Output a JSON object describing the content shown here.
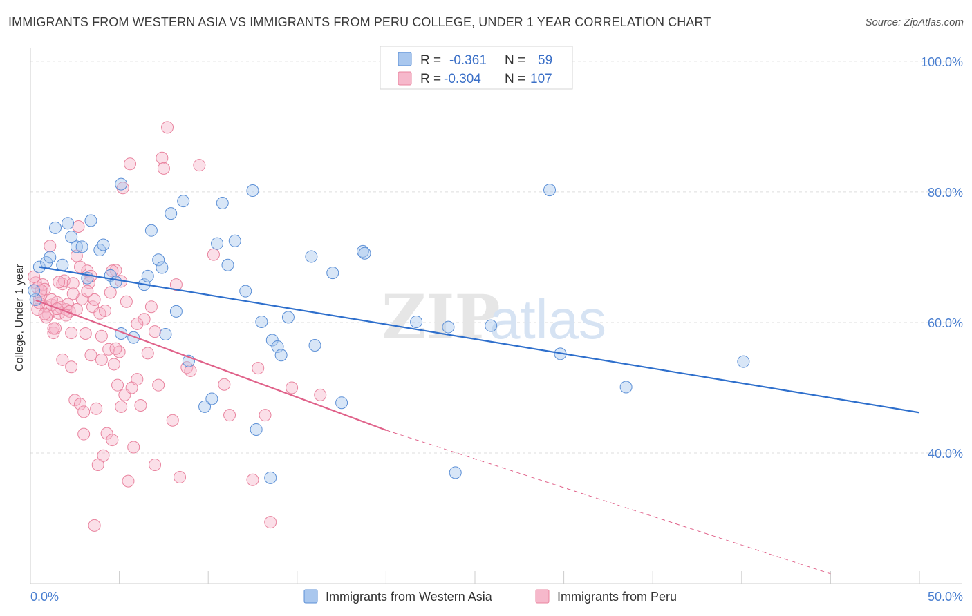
{
  "title": "IMMIGRANTS FROM WESTERN ASIA VS IMMIGRANTS FROM PERU COLLEGE, UNDER 1 YEAR CORRELATION CHART",
  "source": "Source: ZipAtlas.com",
  "watermark": {
    "part1": "ZIP",
    "part2": "atlas"
  },
  "colors": {
    "blue_fill": "#a9c7ee",
    "blue_stroke": "#5b8fd6",
    "blue_line": "#2e6fcc",
    "pink_fill": "#f6b8cb",
    "pink_stroke": "#e9849f",
    "pink_line": "#e0628a",
    "axis_text": "#4a7fd0",
    "grid": "#dddddd"
  },
  "legend_top": [
    {
      "r_label": "R =",
      "r_value": "-0.361",
      "n_label": "N =",
      "n_value": "59"
    },
    {
      "r_label": "R =",
      "r_value": "-0.304",
      "n_label": "N =",
      "n_value": "107"
    }
  ],
  "chart_data": {
    "type": "scatter",
    "title": "IMMIGRANTS FROM WESTERN ASIA VS IMMIGRANTS FROM PERU COLLEGE, UNDER 1 YEAR CORRELATION CHART",
    "xlabel": "",
    "ylabel": "College, Under 1 year",
    "xlim": [
      0,
      50
    ],
    "ylim": [
      20,
      102
    ],
    "x_tick_labels": [
      "0.0%",
      "50.0%"
    ],
    "y_ticks": [
      40,
      60,
      80,
      100
    ],
    "y_tick_labels": [
      "40.0%",
      "60.0%",
      "80.0%",
      "100.0%"
    ],
    "grid": true,
    "legend_position": "top-center",
    "series": [
      {
        "name": "Immigrants from Western Asia",
        "trend": {
          "x0": 0.5,
          "y0": 68.5,
          "x1": 50,
          "y1": 46.2
        },
        "points": [
          [
            0.5,
            68.5
          ],
          [
            0.9,
            69.2
          ],
          [
            1.1,
            70.0
          ],
          [
            1.4,
            74.5
          ],
          [
            1.8,
            68.8
          ],
          [
            2.1,
            75.2
          ],
          [
            2.3,
            73.1
          ],
          [
            2.6,
            71.6
          ],
          [
            2.9,
            71.6
          ],
          [
            3.4,
            75.6
          ],
          [
            3.2,
            66.8
          ],
          [
            3.9,
            71.1
          ],
          [
            4.1,
            71.9
          ],
          [
            4.5,
            67.2
          ],
          [
            4.8,
            66.2
          ],
          [
            5.1,
            81.2
          ],
          [
            5.1,
            58.3
          ],
          [
            5.8,
            57.7
          ],
          [
            6.4,
            65.8
          ],
          [
            6.6,
            67.1
          ],
          [
            6.8,
            74.1
          ],
          [
            7.2,
            69.6
          ],
          [
            7.4,
            68.4
          ],
          [
            7.6,
            58.2
          ],
          [
            7.9,
            76.7
          ],
          [
            8.2,
            61.7
          ],
          [
            8.6,
            78.6
          ],
          [
            8.9,
            54.1
          ],
          [
            9.8,
            47.1
          ],
          [
            10.2,
            48.3
          ],
          [
            10.5,
            72.1
          ],
          [
            10.8,
            78.3
          ],
          [
            11.1,
            68.8
          ],
          [
            11.5,
            72.5
          ],
          [
            12.1,
            64.8
          ],
          [
            12.5,
            80.2
          ],
          [
            12.7,
            43.6
          ],
          [
            13.0,
            60.1
          ],
          [
            13.5,
            36.2
          ],
          [
            13.6,
            57.3
          ],
          [
            13.9,
            56.3
          ],
          [
            14.1,
            55.0
          ],
          [
            14.5,
            60.8
          ],
          [
            15.8,
            70.1
          ],
          [
            16.0,
            56.5
          ],
          [
            17.0,
            67.6
          ],
          [
            17.5,
            47.7
          ],
          [
            18.7,
            70.9
          ],
          [
            18.8,
            70.6
          ],
          [
            21.7,
            60.1
          ],
          [
            23.5,
            59.3
          ],
          [
            23.9,
            37.0
          ],
          [
            25.9,
            59.5
          ],
          [
            29.2,
            80.3
          ],
          [
            29.8,
            55.2
          ],
          [
            33.5,
            50.1
          ],
          [
            40.1,
            54.0
          ],
          [
            0.3,
            63.5
          ],
          [
            0.2,
            64.9
          ]
        ]
      },
      {
        "name": "Immigrants from Peru",
        "trend": {
          "x0": 0.3,
          "y0": 63.4,
          "x1": 20,
          "y1": 43.5
        },
        "trend_dashed": {
          "x0": 20,
          "y0": 43.5,
          "x1": 45,
          "y1": 21.5
        },
        "points": [
          [
            0.3,
            66.1
          ],
          [
            0.4,
            65.3
          ],
          [
            0.5,
            63.6
          ],
          [
            0.6,
            64.2
          ],
          [
            0.7,
            65.8
          ],
          [
            0.8,
            65.1
          ],
          [
            0.9,
            62.4
          ],
          [
            1.0,
            61.2
          ],
          [
            1.1,
            71.7
          ],
          [
            1.2,
            62.7
          ],
          [
            1.3,
            58.4
          ],
          [
            1.4,
            59.1
          ],
          [
            1.5,
            63.1
          ],
          [
            1.6,
            61.4
          ],
          [
            1.7,
            62.3
          ],
          [
            1.8,
            65.9
          ],
          [
            1.9,
            66.4
          ],
          [
            2.0,
            62.0
          ],
          [
            2.1,
            62.8
          ],
          [
            2.2,
            61.7
          ],
          [
            2.3,
            53.2
          ],
          [
            2.4,
            66.0
          ],
          [
            2.5,
            48.1
          ],
          [
            2.6,
            70.2
          ],
          [
            2.7,
            74.7
          ],
          [
            2.8,
            47.5
          ],
          [
            2.9,
            63.6
          ],
          [
            3.0,
            46.3
          ],
          [
            3.1,
            58.3
          ],
          [
            3.2,
            67.9
          ],
          [
            3.3,
            66.1
          ],
          [
            3.4,
            55.0
          ],
          [
            3.5,
            62.4
          ],
          [
            3.6,
            63.5
          ],
          [
            3.7,
            46.8
          ],
          [
            3.8,
            38.2
          ],
          [
            3.9,
            61.4
          ],
          [
            4.0,
            54.3
          ],
          [
            4.1,
            39.6
          ],
          [
            4.2,
            61.8
          ],
          [
            4.3,
            43.0
          ],
          [
            4.4,
            55.9
          ],
          [
            4.5,
            64.6
          ],
          [
            4.6,
            42.0
          ],
          [
            4.7,
            53.6
          ],
          [
            4.8,
            68.0
          ],
          [
            4.9,
            50.4
          ],
          [
            5.0,
            55.5
          ],
          [
            5.1,
            47.1
          ],
          [
            5.2,
            80.6
          ],
          [
            5.3,
            48.9
          ],
          [
            5.4,
            63.2
          ],
          [
            5.5,
            35.7
          ],
          [
            5.6,
            84.3
          ],
          [
            5.7,
            50.0
          ],
          [
            5.8,
            40.9
          ],
          [
            6.0,
            51.3
          ],
          [
            6.2,
            47.3
          ],
          [
            6.4,
            60.5
          ],
          [
            6.6,
            55.3
          ],
          [
            6.8,
            62.4
          ],
          [
            7.0,
            38.2
          ],
          [
            7.2,
            50.4
          ],
          [
            7.4,
            85.2
          ],
          [
            7.5,
            83.6
          ],
          [
            7.7,
            89.9
          ],
          [
            8.0,
            45.0
          ],
          [
            8.2,
            65.8
          ],
          [
            8.4,
            36.3
          ],
          [
            8.8,
            53.1
          ],
          [
            9.0,
            52.6
          ],
          [
            9.5,
            84.1
          ],
          [
            10.3,
            70.4
          ],
          [
            10.9,
            50.5
          ],
          [
            11.2,
            45.8
          ],
          [
            12.5,
            35.9
          ],
          [
            12.8,
            53.0
          ],
          [
            13.2,
            45.8
          ],
          [
            13.5,
            29.4
          ],
          [
            14.7,
            50.0
          ],
          [
            16.3,
            48.9
          ],
          [
            0.2,
            67.0
          ],
          [
            0.6,
            64.9
          ],
          [
            1.3,
            59.1
          ],
          [
            1.8,
            54.3
          ],
          [
            2.3,
            58.4
          ],
          [
            3.0,
            42.9
          ],
          [
            3.6,
            28.9
          ],
          [
            0.9,
            60.8
          ],
          [
            1.6,
            66.2
          ],
          [
            2.4,
            64.4
          ],
          [
            3.2,
            64.8
          ],
          [
            4.6,
            67.9
          ],
          [
            5.1,
            66.3
          ],
          [
            0.4,
            62.0
          ],
          [
            0.8,
            61.3
          ],
          [
            1.2,
            63.5
          ],
          [
            2.0,
            61.1
          ],
          [
            2.8,
            68.5
          ],
          [
            3.4,
            67.1
          ],
          [
            4.0,
            57.9
          ],
          [
            4.8,
            56.0
          ],
          [
            6.0,
            59.8
          ],
          [
            7.0,
            58.6
          ],
          [
            1.5,
            62.1
          ],
          [
            2.6,
            62.0
          ],
          [
            0.5,
            63.0
          ]
        ]
      }
    ]
  },
  "bottom_legend": [
    {
      "label": "Immigrants from Western Asia"
    },
    {
      "label": "Immigrants from Peru"
    }
  ]
}
